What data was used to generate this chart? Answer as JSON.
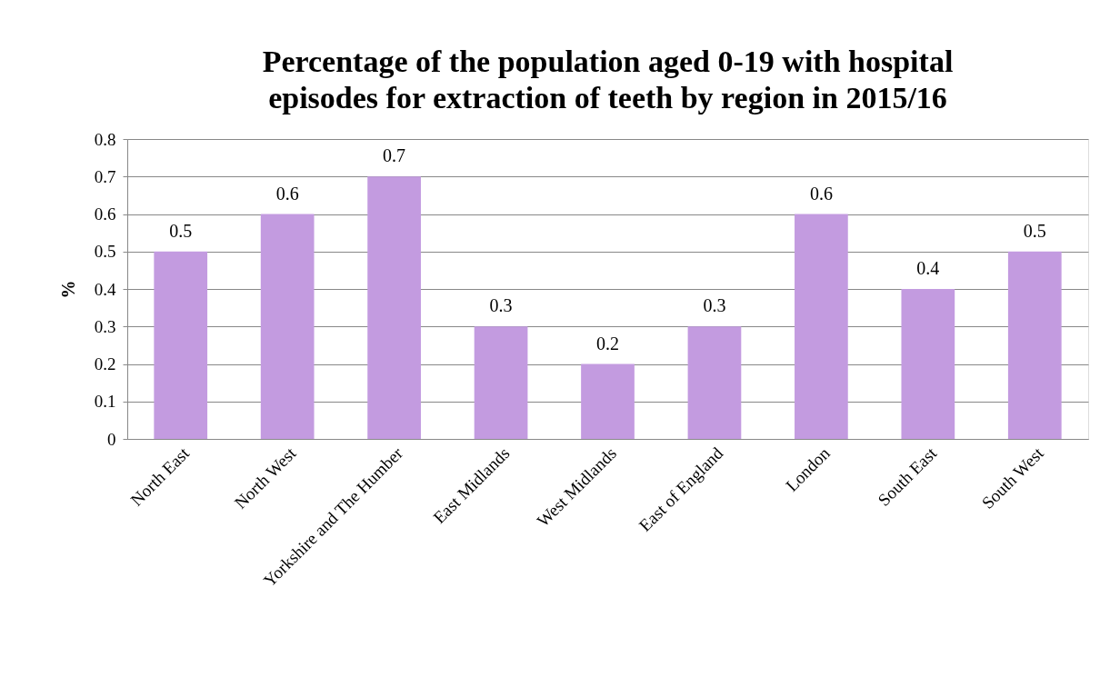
{
  "chart_data": {
    "type": "bar",
    "title": "Percentage of the population aged 0-19 with hospital episodes for extraction of teeth by region in 2015/16",
    "ylabel": "%",
    "categories": [
      "North East",
      "North West",
      "Yorkshire and The Humber",
      "East Midlands",
      "West Midlands",
      "East of England",
      "London",
      "South East",
      "South West"
    ],
    "values": [
      0.5,
      0.6,
      0.7,
      0.3,
      0.2,
      0.3,
      0.6,
      0.4,
      0.5
    ],
    "color": "#c39be0",
    "ylim": [
      0,
      0.8
    ],
    "yticks": [
      0,
      0.1,
      0.2,
      0.3,
      0.4,
      0.5,
      0.6,
      0.7,
      0.8
    ],
    "grid": "y",
    "data_labels": true
  }
}
